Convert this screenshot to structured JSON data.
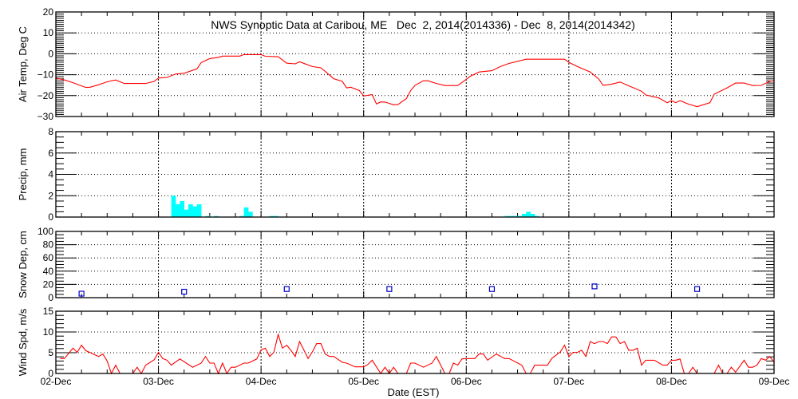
{
  "chart_data": [
    {
      "type": "line",
      "title": "NWS Synoptic Data at Caribou, ME   Dec  2, 2014(2014336) - Dec  8, 2014(2014342)",
      "ylabel": "Air Temp, Deg C",
      "ylim": [
        -30,
        20
      ],
      "yticks": [
        "-30",
        "-20",
        "-10",
        "0",
        "10",
        "20"
      ],
      "grid": true,
      "color": "#ff0000",
      "points": [
        [
          "2014-12-02 00:00",
          -11.6
        ],
        [
          "2014-12-02 02:00",
          -12.5
        ],
        [
          "2014-12-02 04:00",
          -13.8
        ],
        [
          "2014-12-02 07:00",
          -16.1
        ],
        [
          "2014-12-02 08:00",
          -16.0
        ],
        [
          "2014-12-02 10:00",
          -14.8
        ],
        [
          "2014-12-02 12:00",
          -13.4
        ],
        [
          "2014-12-02 14:00",
          -12.5
        ],
        [
          "2014-12-02 16:00",
          -14.2
        ],
        [
          "2014-12-02 21:00",
          -14.2
        ],
        [
          "2014-12-02 23:00",
          -13.2
        ],
        [
          "2014-12-03 00:00",
          -11.6
        ],
        [
          "2014-12-03 02:00",
          -11.3
        ],
        [
          "2014-12-03 04:00",
          -9.7
        ],
        [
          "2014-12-03 06:00",
          -9.3
        ],
        [
          "2014-12-03 09:00",
          -7.2
        ],
        [
          "2014-12-03 10:00",
          -4.2
        ],
        [
          "2014-12-03 12:00",
          -2.3
        ],
        [
          "2014-12-03 14:00",
          -1.7
        ],
        [
          "2014-12-03 15:00",
          -1.1
        ],
        [
          "2014-12-03 19:00",
          -1.1
        ],
        [
          "2014-12-03 20:00",
          -0.4
        ],
        [
          "2014-12-04 00:00",
          -0.4
        ],
        [
          "2014-12-04 01:00",
          -1.2
        ],
        [
          "2014-12-04 04:00",
          -1.4
        ],
        [
          "2014-12-04 06:00",
          -4.5
        ],
        [
          "2014-12-04 08:00",
          -4.8
        ],
        [
          "2014-12-04 09:00",
          -3.8
        ],
        [
          "2014-12-04 12:00",
          -6.1
        ],
        [
          "2014-12-04 14:00",
          -6.7
        ],
        [
          "2014-12-04 15:00",
          -8.4
        ],
        [
          "2014-12-04 17:00",
          -11.9
        ],
        [
          "2014-12-04 19:00",
          -13.2
        ],
        [
          "2014-12-04 20:00",
          -16.3
        ],
        [
          "2014-12-04 21:00",
          -16.0
        ],
        [
          "2014-12-04 23:00",
          -17.6
        ],
        [
          "2014-12-05 00:00",
          -20.2
        ],
        [
          "2014-12-05 02:00",
          -19.5
        ],
        [
          "2014-12-05 03:00",
          -24.0
        ],
        [
          "2014-12-05 04:00",
          -23.0
        ],
        [
          "2014-12-05 05:00",
          -23.1
        ],
        [
          "2014-12-05 07:00",
          -24.4
        ],
        [
          "2014-12-05 08:00",
          -24.3
        ],
        [
          "2014-12-05 10:00",
          -21.4
        ],
        [
          "2014-12-05 11:00",
          -17.6
        ],
        [
          "2014-12-05 12:00",
          -15.1
        ],
        [
          "2014-12-05 14:00",
          -12.9
        ],
        [
          "2014-12-05 15:00",
          -12.9
        ],
        [
          "2014-12-05 17:00",
          -14.2
        ],
        [
          "2014-12-05 19:00",
          -15.2
        ],
        [
          "2014-12-05 22:00",
          -15.2
        ],
        [
          "2014-12-06 00:00",
          -12.2
        ],
        [
          "2014-12-06 01:00",
          -10.7
        ],
        [
          "2014-12-06 03:00",
          -8.7
        ],
        [
          "2014-12-06 06:00",
          -8.1
        ],
        [
          "2014-12-06 08:00",
          -6.1
        ],
        [
          "2014-12-06 10:00",
          -4.6
        ],
        [
          "2014-12-06 14:00",
          -2.6
        ],
        [
          "2014-12-06 23:00",
          -2.6
        ],
        [
          "2014-12-07 00:00",
          -4.1
        ],
        [
          "2014-12-07 02:00",
          -6.1
        ],
        [
          "2014-12-07 05:00",
          -8.7
        ],
        [
          "2014-12-07 07:00",
          -12.1
        ],
        [
          "2014-12-07 08:00",
          -15.1
        ],
        [
          "2014-12-07 10:00",
          -14.5
        ],
        [
          "2014-12-07 12:00",
          -13.5
        ],
        [
          "2014-12-07 14:00",
          -15.3
        ],
        [
          "2014-12-07 17:00",
          -17.9
        ],
        [
          "2014-12-07 18:00",
          -19.7
        ],
        [
          "2014-12-07 21:00",
          -21.1
        ],
        [
          "2014-12-07 23:00",
          -23.4
        ],
        [
          "2014-12-08 00:00",
          -22.4
        ],
        [
          "2014-12-08 01:00",
          -23.4
        ],
        [
          "2014-12-08 02:00",
          -22.4
        ],
        [
          "2014-12-08 04:00",
          -24.1
        ],
        [
          "2014-12-08 06:00",
          -25.3
        ],
        [
          "2014-12-08 09:00",
          -23.4
        ],
        [
          "2014-12-08 10:00",
          -19.3
        ],
        [
          "2014-12-08 13:00",
          -16.3
        ],
        [
          "2014-12-08 15:00",
          -14.0
        ],
        [
          "2014-12-08 17:00",
          -14.0
        ],
        [
          "2014-12-08 19:00",
          -15.2
        ],
        [
          "2014-12-08 21:00",
          -15.1
        ],
        [
          "2014-12-08 23:00",
          -13.2
        ],
        [
          "2014-12-09 00:00",
          -12.8
        ]
      ]
    },
    {
      "type": "bar",
      "ylabel": "Precip, mm",
      "ylim": [
        0,
        8
      ],
      "yticks": [
        "0",
        "2",
        "4",
        "6",
        "8"
      ],
      "grid": true,
      "color": "#00ffff",
      "bin_hours": 1,
      "points": [
        [
          "2014-12-03 03:00",
          2.0
        ],
        [
          "2014-12-03 04:00",
          1.2
        ],
        [
          "2014-12-03 05:00",
          1.5
        ],
        [
          "2014-12-03 06:00",
          0.7
        ],
        [
          "2014-12-03 07:00",
          1.2
        ],
        [
          "2014-12-03 08:00",
          1.0
        ],
        [
          "2014-12-03 09:00",
          1.2
        ],
        [
          "2014-12-03 11:00",
          0.1
        ],
        [
          "2014-12-03 13:00",
          0.1
        ],
        [
          "2014-12-03 19:00",
          0.1
        ],
        [
          "2014-12-03 20:00",
          0.9
        ],
        [
          "2014-12-03 21:00",
          0.5
        ],
        [
          "2014-12-04 02:00",
          0.1
        ],
        [
          "2014-12-04 03:00",
          0.1
        ],
        [
          "2014-12-06 09:00",
          0.1
        ],
        [
          "2014-12-06 10:00",
          0.1
        ],
        [
          "2014-12-06 11:00",
          0.1
        ],
        [
          "2014-12-06 12:00",
          0.1
        ],
        [
          "2014-12-06 13:00",
          0.3
        ],
        [
          "2014-12-06 14:00",
          0.5
        ],
        [
          "2014-12-06 15:00",
          0.3
        ],
        [
          "2014-12-06 16:00",
          0.1
        ]
      ]
    },
    {
      "type": "scatter",
      "ylabel": "Snow Dep, cm",
      "ylim": [
        0,
        100
      ],
      "yticks": [
        "0",
        "20",
        "40",
        "60",
        "80",
        "100"
      ],
      "grid": true,
      "color": "#0000cc",
      "marker": "square",
      "points": [
        [
          "2014-12-02 06:00",
          6
        ],
        [
          "2014-12-03 06:00",
          9
        ],
        [
          "2014-12-04 06:00",
          13
        ],
        [
          "2014-12-05 06:00",
          13
        ],
        [
          "2014-12-06 06:00",
          13
        ],
        [
          "2014-12-07 06:00",
          17
        ],
        [
          "2014-12-08 06:00",
          13
        ]
      ]
    },
    {
      "type": "line",
      "ylabel": "Wind Spd, m/s",
      "ylim": [
        0,
        15
      ],
      "yticks": [
        "0",
        "5",
        "10",
        "15"
      ],
      "grid": true,
      "color": "#ff0000",
      "xlabel": "Date (EST)",
      "points": [
        [
          "2014-12-02 01:00",
          3.6
        ],
        [
          "2014-12-02 02:00",
          3.6
        ],
        [
          "2014-12-02 04:00",
          6.1
        ],
        [
          "2014-12-02 05:00",
          5.1
        ],
        [
          "2014-12-02 06:00",
          6.8
        ],
        [
          "2014-12-02 07:00",
          5.5
        ],
        [
          "2014-12-02 10:00",
          4.1
        ],
        [
          "2014-12-02 11:00",
          4.7
        ],
        [
          "2014-12-02 12:00",
          3.0
        ],
        [
          "2014-12-02 13:00",
          0
        ],
        [
          "2014-12-02 14:00",
          2.0
        ],
        [
          "2014-12-02 15:00",
          0
        ],
        [
          "2014-12-02 18:00",
          0
        ],
        [
          "2014-12-02 19:00",
          1.5
        ],
        [
          "2014-12-02 20:00",
          0
        ],
        [
          "2014-12-02 21:00",
          2.0
        ],
        [
          "2014-12-02 23:00",
          3.3
        ],
        [
          "2014-12-03 00:00",
          5.1
        ],
        [
          "2014-12-03 01:00",
          3.6
        ],
        [
          "2014-12-03 02:00",
          3.2
        ],
        [
          "2014-12-03 03:00",
          2.0
        ],
        [
          "2014-12-03 05:00",
          3.5
        ],
        [
          "2014-12-03 08:00",
          1.5
        ],
        [
          "2014-12-03 10:00",
          2.5
        ],
        [
          "2014-12-03 11:00",
          4.1
        ],
        [
          "2014-12-03 12:00",
          2.5
        ],
        [
          "2014-12-03 13:00",
          2.5
        ],
        [
          "2014-12-03 14:00",
          0
        ],
        [
          "2014-12-03 15:00",
          2.5
        ],
        [
          "2014-12-03 16:00",
          0
        ],
        [
          "2014-12-03 17:00",
          1.5
        ],
        [
          "2014-12-03 18:00",
          1.5
        ],
        [
          "2014-12-03 20:00",
          2.5
        ],
        [
          "2014-12-03 21:00",
          2.5
        ],
        [
          "2014-12-03 23:00",
          3.5
        ],
        [
          "2014-12-04 00:00",
          5.7
        ],
        [
          "2014-12-04 01:00",
          6.1
        ],
        [
          "2014-12-04 02:00",
          4.1
        ],
        [
          "2014-12-04 03:00",
          5.1
        ],
        [
          "2014-12-04 04:00",
          9.4
        ],
        [
          "2014-12-04 05:00",
          6.1
        ],
        [
          "2014-12-04 06:00",
          6.8
        ],
        [
          "2014-12-04 07:00",
          5.6
        ],
        [
          "2014-12-04 08:00",
          4.1
        ],
        [
          "2014-12-04 09:00",
          7.7
        ],
        [
          "2014-12-04 10:00",
          5.7
        ],
        [
          "2014-12-04 11:00",
          3.6
        ],
        [
          "2014-12-04 12:00",
          5.2
        ],
        [
          "2014-12-04 13:00",
          7.2
        ],
        [
          "2014-12-04 14:00",
          7.2
        ],
        [
          "2014-12-04 15:00",
          4.7
        ],
        [
          "2014-12-04 16:00",
          4.1
        ],
        [
          "2014-12-04 17:00",
          4.1
        ],
        [
          "2014-12-04 19:00",
          2.7
        ],
        [
          "2014-12-04 20:00",
          2.5
        ],
        [
          "2014-12-04 22:00",
          1.6
        ],
        [
          "2014-12-05 00:00",
          1.6
        ],
        [
          "2014-12-05 01:00",
          2.2
        ],
        [
          "2014-12-05 02:00",
          3.2
        ],
        [
          "2014-12-05 04:00",
          0
        ],
        [
          "2014-12-05 05:00",
          1.5
        ],
        [
          "2014-12-05 06:00",
          0
        ],
        [
          "2014-12-05 07:00",
          1.5
        ],
        [
          "2014-12-05 08:00",
          0
        ],
        [
          "2014-12-05 10:00",
          0
        ],
        [
          "2014-12-05 11:00",
          2.5
        ],
        [
          "2014-12-05 12:00",
          2.5
        ],
        [
          "2014-12-05 14:00",
          1.5
        ],
        [
          "2014-12-05 16:00",
          2.5
        ],
        [
          "2014-12-05 17:00",
          4.1
        ],
        [
          "2014-12-05 19:00",
          0
        ],
        [
          "2014-12-05 20:00",
          0
        ],
        [
          "2014-12-05 21:00",
          2.5
        ],
        [
          "2014-12-05 22:00",
          2.0
        ],
        [
          "2014-12-05 23:00",
          3.5
        ],
        [
          "2014-12-06 00:00",
          3.6
        ],
        [
          "2014-12-06 02:00",
          3.6
        ],
        [
          "2014-12-06 03:00",
          4.7
        ],
        [
          "2014-12-06 04:00",
          4.7
        ],
        [
          "2014-12-06 05:00",
          3.2
        ],
        [
          "2014-12-06 07:00",
          4.7
        ],
        [
          "2014-12-06 09:00",
          3.6
        ],
        [
          "2014-12-06 10:00",
          3.6
        ],
        [
          "2014-12-06 13:00",
          2.0
        ],
        [
          "2014-12-06 14:00",
          0
        ],
        [
          "2014-12-06 15:00",
          0
        ],
        [
          "2014-12-06 16:00",
          2.0
        ],
        [
          "2014-12-06 19:00",
          2.0
        ],
        [
          "2014-12-06 20:00",
          3.6
        ],
        [
          "2014-12-06 22:00",
          5.2
        ],
        [
          "2014-12-06 23:00",
          6.8
        ],
        [
          "2014-12-07 00:00",
          4.1
        ],
        [
          "2014-12-07 01:00",
          5.1
        ],
        [
          "2014-12-07 02:00",
          5.1
        ],
        [
          "2014-12-07 03:00",
          5.6
        ],
        [
          "2014-12-07 04:00",
          4.1
        ],
        [
          "2014-12-07 05:00",
          7.7
        ],
        [
          "2014-12-07 06:00",
          7.2
        ],
        [
          "2014-12-07 07:00",
          7.7
        ],
        [
          "2014-12-07 08:00",
          7.7
        ],
        [
          "2014-12-07 09:00",
          7.2
        ],
        [
          "2014-12-07 10:00",
          8.8
        ],
        [
          "2014-12-07 11:00",
          8.8
        ],
        [
          "2014-12-07 12:00",
          7.2
        ],
        [
          "2014-12-07 13:00",
          7.7
        ],
        [
          "2014-12-07 14:00",
          5.6
        ],
        [
          "2014-12-07 15:00",
          5.6
        ],
        [
          "2014-12-07 16:00",
          6.1
        ],
        [
          "2014-12-07 17:00",
          2.0
        ],
        [
          "2014-12-07 18:00",
          3.2
        ],
        [
          "2014-12-07 20:00",
          3.2
        ],
        [
          "2014-12-07 22:00",
          2.0
        ],
        [
          "2014-12-07 23:00",
          2.0
        ],
        [
          "2014-12-08 00:00",
          3.2
        ],
        [
          "2014-12-08 01:00",
          3.2
        ],
        [
          "2014-12-08 02:00",
          3.5
        ],
        [
          "2014-12-08 03:00",
          0
        ],
        [
          "2014-12-08 04:00",
          0
        ],
        [
          "2014-12-08 05:00",
          1.5
        ],
        [
          "2014-12-08 06:00",
          0
        ],
        [
          "2014-12-08 10:00",
          0
        ],
        [
          "2014-12-08 11:00",
          2.0
        ],
        [
          "2014-12-08 12:00",
          0
        ],
        [
          "2014-12-08 13:00",
          0
        ],
        [
          "2014-12-08 14:00",
          1.5
        ],
        [
          "2014-12-08 15:00",
          0.3
        ],
        [
          "2014-12-08 17:00",
          3.2
        ],
        [
          "2014-12-08 18:00",
          1.5
        ],
        [
          "2014-12-08 19:00",
          1.5
        ],
        [
          "2014-12-08 20:00",
          2.0
        ],
        [
          "2014-12-08 21:00",
          3.6
        ],
        [
          "2014-12-08 22:00",
          3.2
        ],
        [
          "2014-12-08 23:00",
          4.1
        ],
        [
          "2014-12-09 00:00",
          2.7
        ]
      ]
    }
  ],
  "x_axis": {
    "xlim": [
      "2014-12-02 00:00",
      "2014-12-09 00:00"
    ],
    "ticks": [
      "02-Dec",
      "03-Dec",
      "04-Dec",
      "05-Dec",
      "06-Dec",
      "07-Dec",
      "08-Dec",
      "09-Dec"
    ],
    "xlabel": "Date (EST)"
  }
}
